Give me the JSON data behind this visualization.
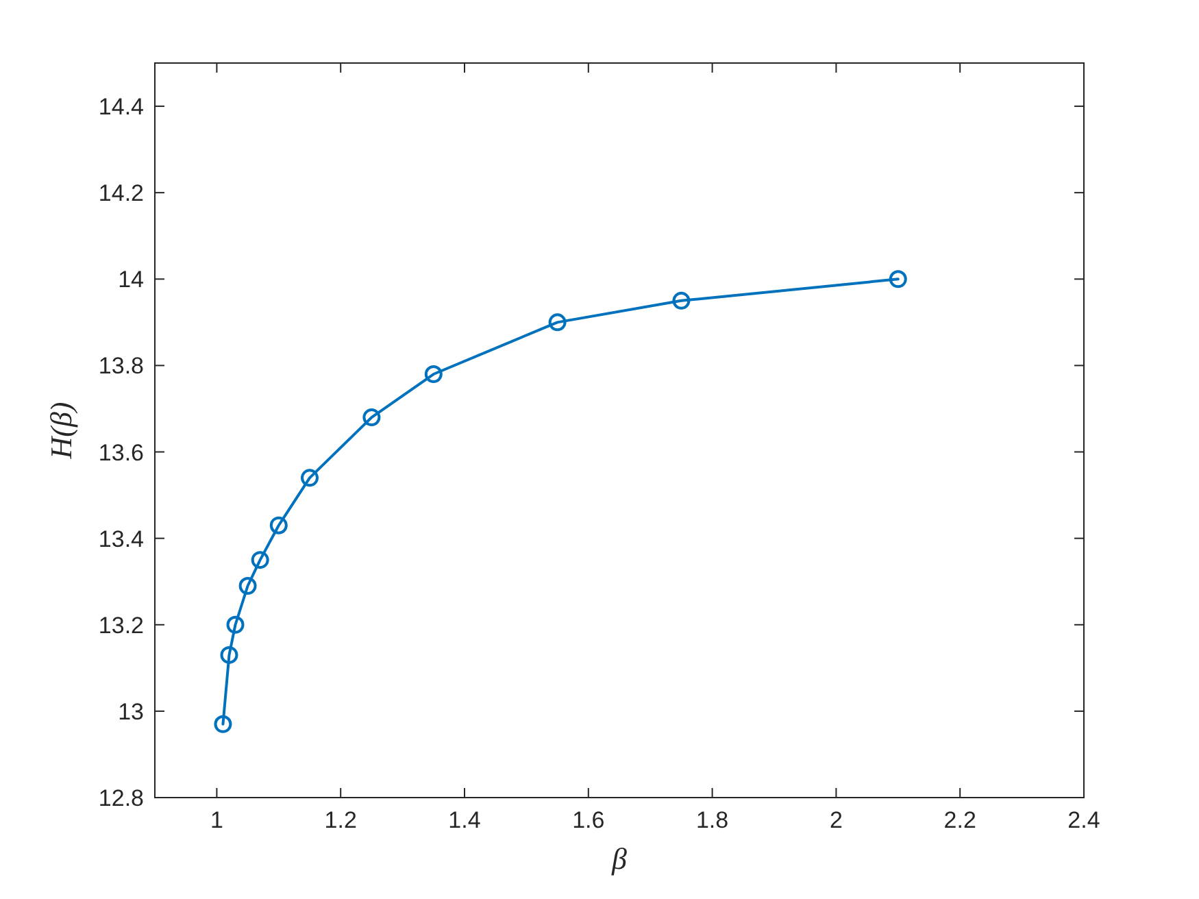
{
  "chart_data": {
    "type": "line",
    "xlabel": "β",
    "ylabel": "H(β)",
    "x": [
      1.01,
      1.02,
      1.03,
      1.05,
      1.07,
      1.1,
      1.15,
      1.25,
      1.35,
      1.55,
      1.75,
      2.1
    ],
    "series": [
      {
        "color": "#0072bd",
        "values": [
          12.97,
          13.13,
          13.2,
          13.29,
          13.35,
          13.43,
          13.54,
          13.68,
          13.78,
          13.9,
          13.95,
          14.0
        ]
      }
    ],
    "xlim": [
      0.9,
      2.4
    ],
    "xticks": [
      1,
      1.2,
      1.4,
      1.6,
      1.8,
      2,
      2.2,
      2.4
    ],
    "ylim": [
      12.8,
      14.5
    ],
    "yticks": [
      12.8,
      13,
      13.2,
      13.4,
      13.6,
      13.8,
      14,
      14.2,
      14.4
    ],
    "marker": "circle",
    "line_style": "solid"
  }
}
